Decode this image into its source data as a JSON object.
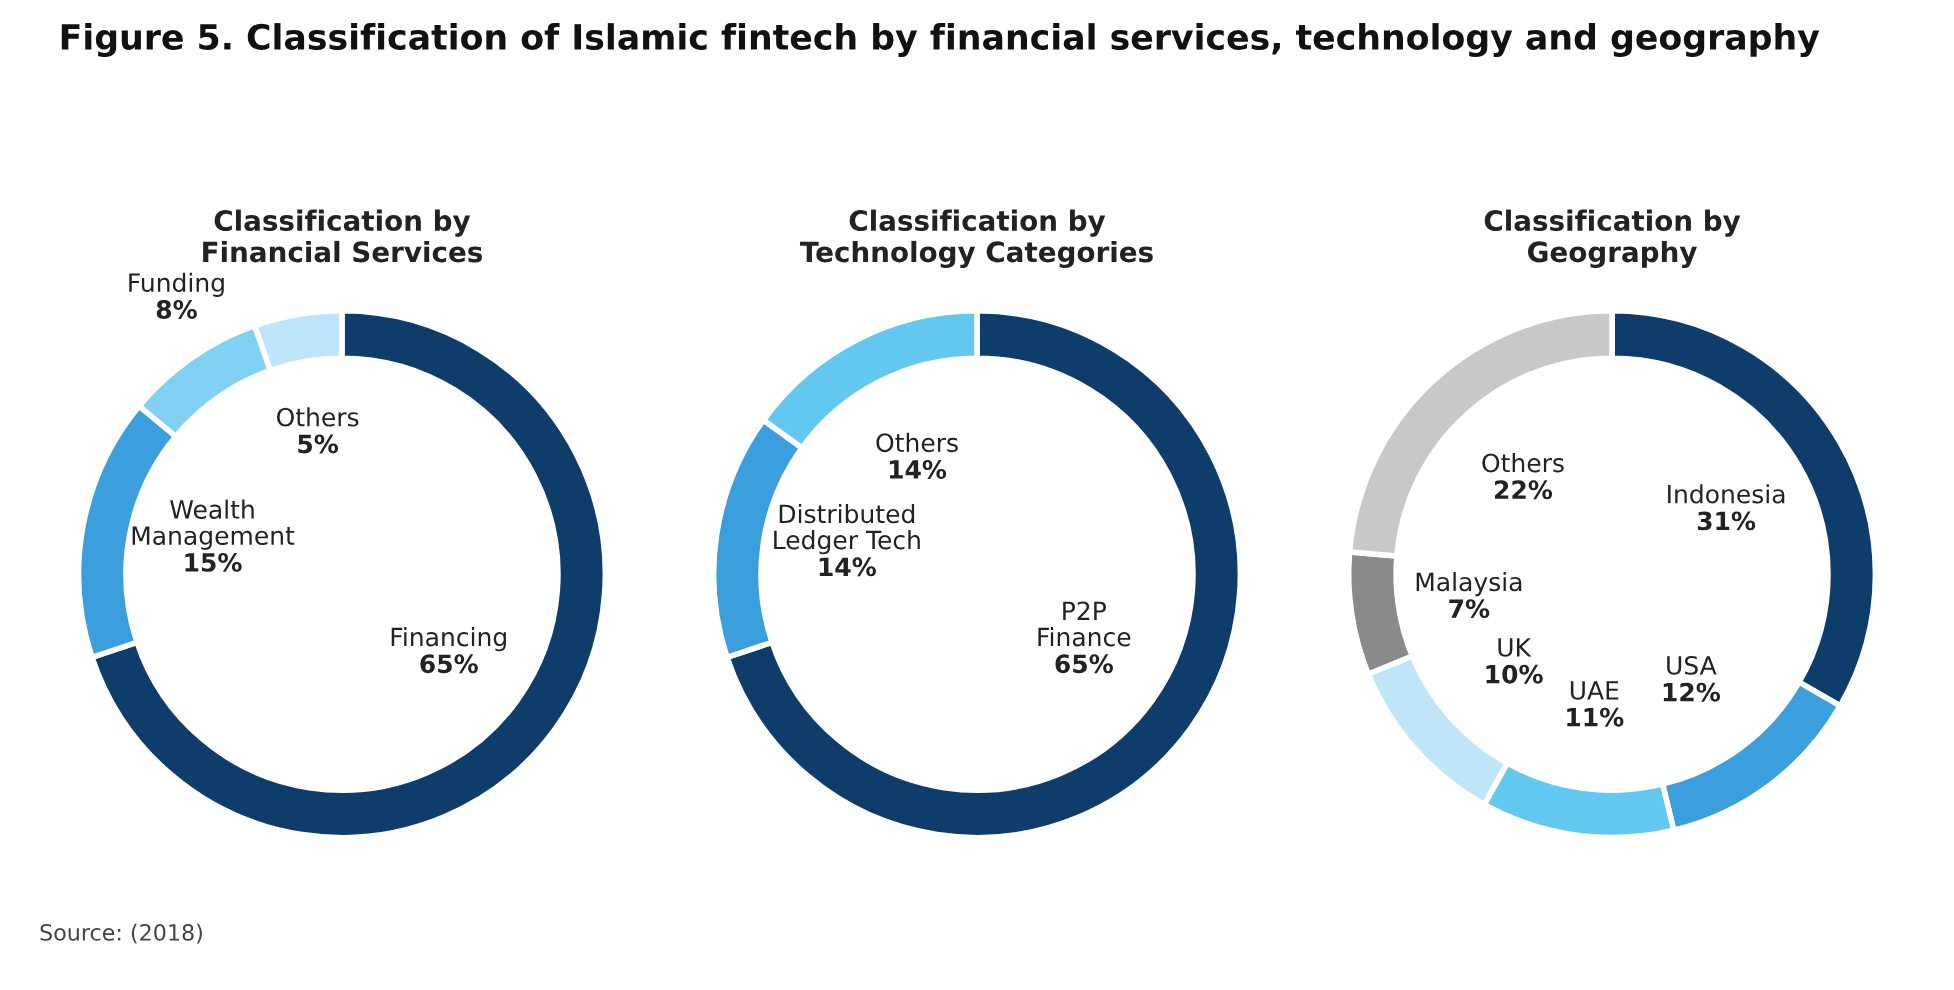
{
  "chart_data": [
    {
      "type": "donut",
      "title": "Classification by\nFinancial Services",
      "categories": [
        "Financing",
        "Wealth\nManagement",
        "Funding",
        "Others"
      ],
      "values": [
        65,
        15,
        8,
        5
      ],
      "value_labels": [
        "65%",
        "15%",
        "8%",
        "5%"
      ],
      "colors": [
        "#0f3d6b",
        "#3a9fdc",
        "#7fd0f2",
        "#bfe6f8"
      ],
      "annotations": [
        "Figure 5. Classification of Islamic fintech by financial services, technology and geography",
        "Source: (2018)"
      ]
    },
    {
      "type": "donut",
      "title": "Classification by\nTechnology Categories",
      "categories": [
        "P2P\nFinance",
        "Distributed\nLedger Tech",
        "Others"
      ],
      "values": [
        65,
        14,
        14
      ],
      "value_labels": [
        "65%",
        "14%",
        "14%"
      ],
      "colors": [
        "#0f3d6b",
        "#3a9fdc",
        "#62c8f0"
      ]
    },
    {
      "type": "donut",
      "title": "Classification by\nGeography",
      "categories": [
        "Indonesia",
        "USA",
        "UAE",
        "UK",
        "Malaysia",
        "Others"
      ],
      "values": [
        31,
        12,
        11,
        10,
        7,
        22
      ],
      "value_labels": [
        "31%",
        "12%",
        "11%",
        "10%",
        "7%",
        "22%"
      ],
      "colors": [
        "#0f3d6b",
        "#3a9fdc",
        "#62c8f0",
        "#bfe6f8",
        "#8a8a8a",
        "#c8c8c8"
      ]
    }
  ]
}
